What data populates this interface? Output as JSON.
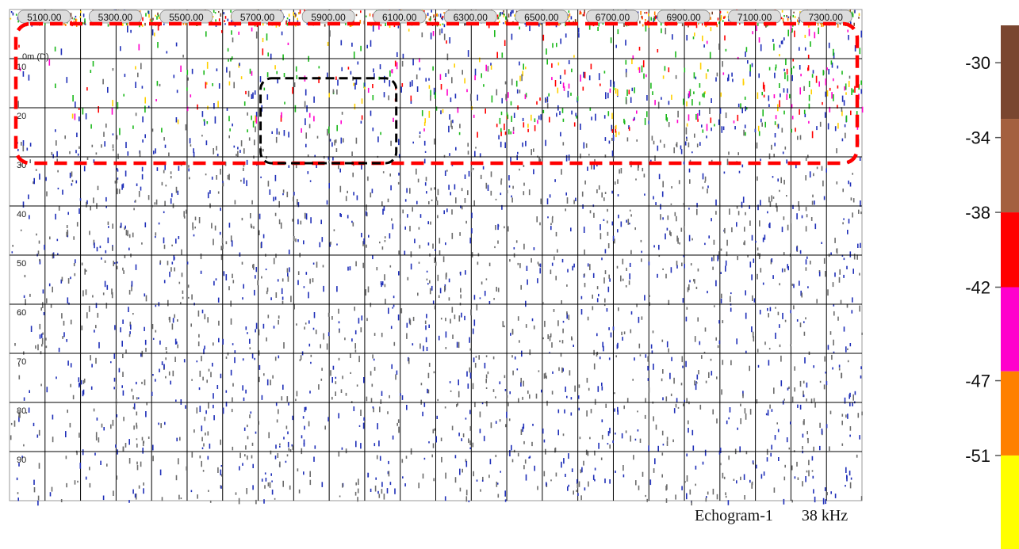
{
  "chart_data": {
    "type": "heatmap",
    "subtype": "echogram",
    "caption": "Echogram-1",
    "frequency": "38 kHz",
    "x_axis": {
      "ticks": [
        "5100.00",
        "5300.00",
        "5500.00",
        "5700.00",
        "5900.00",
        "6100.00",
        "6300.00",
        "6500.00",
        "6700.00",
        "6900.00",
        "7100.00",
        "7300.00"
      ],
      "range": [
        5000,
        7400
      ],
      "minor_grid_step": 100
    },
    "y_axis": {
      "first_label": "0m (D)",
      "labels": [
        "10",
        "20",
        "30",
        "40",
        "50",
        "60",
        "70",
        "80",
        "90"
      ],
      "depth_label_values": [
        10,
        20,
        30,
        40,
        50,
        60,
        70,
        80,
        90
      ],
      "range": [
        0,
        100
      ],
      "reversed": true,
      "grid": true
    },
    "colorbar": {
      "ticks": [
        "-30",
        "-34",
        "-38",
        "-42",
        "-47",
        "-51"
      ],
      "range_db": [
        -28,
        -56
      ],
      "bands": [
        {
          "from": -28,
          "to": -33,
          "color": "#7a4630"
        },
        {
          "from": -33,
          "to": -38,
          "color": "#a4603f"
        },
        {
          "from": -38,
          "to": -42,
          "color": "#ff0000"
        },
        {
          "from": -42,
          "to": -46.5,
          "color": "#ff00cc"
        },
        {
          "from": -46.5,
          "to": -51,
          "color": "#ff8000"
        },
        {
          "from": -51,
          "to": -56,
          "color": "#ffff00"
        }
      ]
    },
    "annotations": [
      {
        "type": "dashed-rect",
        "color": "#ff0000",
        "x_range": [
          5000,
          7400
        ],
        "depth_range": [
          0,
          25
        ]
      },
      {
        "type": "dashed-rect",
        "color": "#000000",
        "x_range": [
          5700,
          6100
        ],
        "depth_range": [
          14,
          25
        ]
      }
    ],
    "echo_density": {
      "surface_layer_0_3m": "dense multicolor",
      "layer_10_25m": "scattered strong echoes",
      "below_25m": "sparse weak echoes"
    }
  },
  "colors": {
    "weak_echo_blue": "#1f2fb8",
    "weak_echo_grey": "#6c6c6c",
    "green_echo": "#1ab81a",
    "plot_border": "#9a9a9a"
  }
}
